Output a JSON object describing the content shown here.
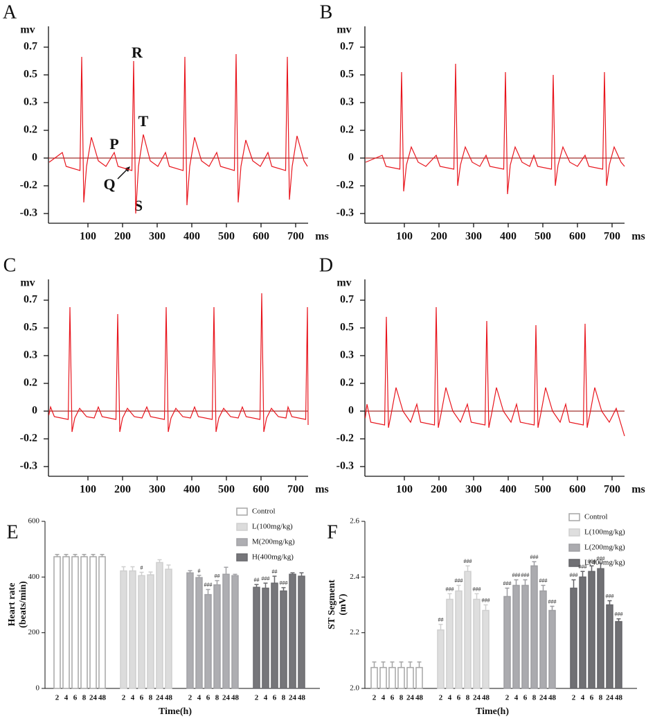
{
  "chart_data": [
    {
      "type": "line",
      "label": "A",
      "ylabel": "mv",
      "xlabel": "ms",
      "x": [
        -12,
        26,
        37,
        77,
        82,
        88,
        96,
        110,
        130,
        152,
        176,
        187,
        227,
        232,
        238,
        246,
        260,
        280,
        302,
        324,
        335,
        375,
        380,
        386,
        394,
        408,
        428,
        450,
        472,
        483,
        523,
        528,
        534,
        542,
        556,
        576,
        598,
        620,
        631,
        671,
        676,
        682,
        690,
        704,
        724,
        734
      ],
      "values": [
        -0.03,
        0.04,
        -0.06,
        -0.09,
        0.63,
        -0.26,
        -0.06,
        0.15,
        -0.02,
        -0.06,
        0.04,
        -0.06,
        -0.09,
        0.6,
        -0.3,
        -0.06,
        0.17,
        -0.02,
        -0.06,
        0.04,
        -0.06,
        -0.09,
        0.63,
        -0.27,
        -0.06,
        0.15,
        -0.02,
        -0.06,
        0.04,
        -0.06,
        -0.09,
        0.65,
        -0.26,
        -0.06,
        0.13,
        -0.02,
        -0.06,
        0.04,
        -0.06,
        -0.09,
        0.63,
        -0.25,
        -0.06,
        0.16,
        -0.02,
        -0.06
      ],
      "color": "#e8141c",
      "baseline_color": "#a0302e",
      "xlim": [
        -14,
        736
      ],
      "xticks": [
        100,
        200,
        300,
        400,
        500,
        600,
        700
      ],
      "ylim": [
        -0.3,
        0.7
      ],
      "yticks": [
        0.7,
        0.5,
        0.3,
        0.2,
        0,
        -0.2,
        -0.3
      ],
      "annotations": [
        "R",
        "P",
        "T",
        "Q",
        "S"
      ]
    },
    {
      "type": "line",
      "label": "B",
      "ylabel": "mv",
      "xlabel": "ms",
      "x": [
        -12,
        36,
        47,
        87,
        92,
        98,
        106,
        120,
        140,
        162,
        192,
        203,
        243,
        248,
        254,
        262,
        276,
        296,
        318,
        336,
        347,
        387,
        392,
        398,
        406,
        420,
        440,
        462,
        474,
        485,
        525,
        530,
        536,
        544,
        558,
        578,
        600,
        622,
        633,
        673,
        678,
        684,
        692,
        706,
        726,
        736
      ],
      "values": [
        -0.03,
        0.02,
        -0.06,
        -0.08,
        0.52,
        -0.22,
        -0.05,
        0.08,
        -0.03,
        -0.06,
        0.02,
        -0.06,
        -0.08,
        0.58,
        -0.2,
        -0.05,
        0.08,
        -0.03,
        -0.06,
        0.02,
        -0.06,
        -0.08,
        0.52,
        -0.23,
        -0.05,
        0.08,
        -0.03,
        -0.06,
        0.02,
        -0.06,
        -0.08,
        0.5,
        -0.2,
        -0.05,
        0.08,
        -0.03,
        -0.06,
        0.02,
        -0.06,
        -0.08,
        0.52,
        -0.2,
        -0.05,
        0.08,
        -0.03,
        -0.06
      ],
      "color": "#e8141c",
      "baseline_color": "#a0302e",
      "xlim": [
        -14,
        736
      ],
      "xticks": [
        100,
        200,
        300,
        400,
        500,
        600,
        700
      ],
      "ylim": [
        -0.3,
        0.7
      ],
      "yticks": [
        0.7,
        0.5,
        0.3,
        0.2,
        0,
        -0.2,
        -0.3
      ]
    },
    {
      "type": "line",
      "label": "C",
      "ylabel": "mv",
      "xlabel": "ms",
      "x": [
        -13,
        -8,
        3,
        43,
        48,
        54,
        62,
        76,
        96,
        118,
        130,
        141,
        181,
        186,
        192,
        200,
        214,
        234,
        256,
        270,
        281,
        321,
        326,
        332,
        340,
        354,
        374,
        396,
        408,
        419,
        459,
        464,
        470,
        478,
        492,
        512,
        534,
        546,
        557,
        597,
        602,
        608,
        616,
        630,
        650,
        672,
        678,
        689,
        729,
        734,
        736
      ],
      "values": [
        -0.03,
        0.03,
        -0.04,
        -0.06,
        0.65,
        -0.15,
        -0.05,
        0.02,
        -0.04,
        -0.05,
        0.03,
        -0.04,
        -0.06,
        0.6,
        -0.15,
        -0.05,
        0.02,
        -0.04,
        -0.05,
        0.03,
        -0.04,
        -0.06,
        0.65,
        -0.15,
        -0.05,
        0.02,
        -0.04,
        -0.05,
        0.03,
        -0.04,
        -0.06,
        0.65,
        -0.15,
        -0.05,
        0.02,
        -0.04,
        -0.05,
        0.03,
        -0.04,
        -0.06,
        0.75,
        -0.15,
        -0.05,
        0.02,
        -0.04,
        -0.05,
        0.03,
        -0.04,
        -0.06,
        0.65,
        -0.1
      ],
      "color": "#e8141c",
      "baseline_color": "#a0302e",
      "xlim": [
        -14,
        736
      ],
      "xticks": [
        100,
        200,
        300,
        400,
        500,
        600,
        700
      ],
      "ylim": [
        -0.3,
        0.7
      ],
      "yticks": [
        0.7,
        0.5,
        0.3,
        0.2,
        0,
        -0.2,
        -0.3
      ]
    },
    {
      "type": "line",
      "label": "D",
      "ylabel": "mv",
      "xlabel": "ms",
      "x": [
        -13,
        -8,
        3,
        43,
        48,
        54,
        62,
        76,
        96,
        118,
        136,
        147,
        187,
        192,
        198,
        206,
        220,
        240,
        262,
        282,
        293,
        333,
        338,
        344,
        352,
        366,
        386,
        408,
        424,
        435,
        475,
        480,
        486,
        494,
        508,
        528,
        550,
        566,
        577,
        617,
        622,
        628,
        636,
        650,
        670,
        692,
        712,
        736
      ],
      "values": [
        -0.05,
        0.05,
        -0.08,
        -0.1,
        0.58,
        -0.12,
        -0.02,
        0.17,
        0,
        -0.08,
        0.05,
        -0.08,
        -0.1,
        0.65,
        -0.12,
        -0.02,
        0.17,
        0,
        -0.08,
        0.05,
        -0.08,
        -0.1,
        0.55,
        -0.12,
        -0.02,
        0.17,
        0,
        -0.08,
        0.05,
        -0.08,
        -0.1,
        0.52,
        -0.12,
        -0.02,
        0.17,
        0,
        -0.08,
        0.05,
        -0.08,
        -0.1,
        0.53,
        -0.12,
        -0.02,
        0.17,
        0,
        -0.08,
        0.02,
        -0.18
      ],
      "color": "#e8141c",
      "baseline_color": "#a0302e",
      "xlim": [
        -14,
        736
      ],
      "xticks": [
        100,
        200,
        300,
        400,
        500,
        600,
        700
      ],
      "ylim": [
        -0.3,
        0.7
      ],
      "yticks": [
        0.7,
        0.5,
        0.3,
        0.2,
        0,
        -0.2,
        -0.3
      ]
    },
    {
      "type": "bar",
      "label": "E",
      "ylabel": [
        "Heart rate",
        "(beats/min)"
      ],
      "xlabel": "Time(h)",
      "categories": [
        "2",
        "4",
        "6",
        "8",
        "24",
        "48"
      ],
      "ylim": [
        0,
        600
      ],
      "yticks": [
        0,
        200,
        400,
        600
      ],
      "series": [
        {
          "name": "Control",
          "color": "#ffffff",
          "edgecolor": "#a6a6a6",
          "values": [
            473,
            473,
            473,
            473,
            473,
            473
          ],
          "errors": [
            8,
            8,
            8,
            8,
            8,
            8
          ],
          "significance": [
            null,
            null,
            null,
            null,
            null,
            null
          ]
        },
        {
          "name": "L(100mg/kg)",
          "color": "#dcdcdc",
          "edgecolor": "#cfcfcf",
          "values": [
            422,
            422,
            405,
            408,
            452,
            428
          ],
          "errors": [
            15,
            15,
            12,
            10,
            10,
            15
          ],
          "significance": [
            null,
            null,
            "#",
            null,
            null,
            null
          ]
        },
        {
          "name": "M(200mg/kg)",
          "color": "#aeaeb2",
          "edgecolor": "#a2a2a6",
          "values": [
            415,
            398,
            337,
            372,
            410,
            405
          ],
          "errors": [
            8,
            8,
            18,
            15,
            25,
            5
          ],
          "significance": [
            null,
            "#",
            "###",
            "##",
            null,
            null
          ]
        },
        {
          "name": "H(400mg/kg)",
          "color": "#76767a",
          "edgecolor": "#6a6a6e",
          "values": [
            363,
            360,
            378,
            350,
            410,
            403
          ],
          "errors": [
            10,
            18,
            25,
            12,
            5,
            12
          ],
          "significance": [
            "##",
            "###",
            "##",
            "###",
            null,
            null
          ]
        }
      ]
    },
    {
      "type": "bar",
      "label": "F",
      "ylabel": [
        "ST Segment",
        "(mV)"
      ],
      "xlabel": "Time(h)",
      "categories": [
        "2",
        "4",
        "6",
        "8",
        "24",
        "48"
      ],
      "ylim": [
        2,
        2.6
      ],
      "yticks": [
        {
          "value": 2,
          "label": "2.0"
        },
        2.2,
        2.4,
        2.6
      ],
      "series": [
        {
          "name": "Control",
          "color": "#ffffff",
          "edgecolor": "#a6a6a6",
          "values": [
            2.075,
            2.075,
            2.075,
            2.075,
            2.075,
            2.075
          ],
          "errors": [
            0.02,
            0.02,
            0.02,
            0.02,
            0.02,
            0.02
          ],
          "significance": [
            null,
            null,
            null,
            null,
            null,
            null
          ]
        },
        {
          "name": "L(100mg/kg)",
          "color": "#dedede",
          "edgecolor": "#cfcfcf",
          "values": [
            2.21,
            2.32,
            2.35,
            2.42,
            2.32,
            2.28
          ],
          "errors": [
            0.02,
            0.02,
            0.02,
            0.02,
            0.02,
            0.02
          ],
          "significance": [
            "##",
            "###",
            "###",
            "###",
            "###",
            "###"
          ]
        },
        {
          "name": "L(200mg/kg)",
          "color": "#ababaf",
          "edgecolor": "#9e9ea2",
          "values": [
            2.33,
            2.37,
            2.37,
            2.44,
            2.35,
            2.28
          ],
          "errors": [
            0.03,
            0.02,
            0.02,
            0.015,
            0.02,
            0.015
          ],
          "significance": [
            "###",
            "###",
            "###",
            "###",
            "###",
            "###"
          ]
        },
        {
          "name": "L(400mg/kg)",
          "color": "#707074",
          "edgecolor": "#646468",
          "values": [
            2.36,
            2.4,
            2.42,
            2.43,
            2.3,
            2.24
          ],
          "errors": [
            0.03,
            0.02,
            0.02,
            0.02,
            0.015,
            0.01
          ],
          "significance": [
            "###",
            "###",
            "###",
            "###",
            "###",
            "###"
          ]
        }
      ]
    }
  ]
}
